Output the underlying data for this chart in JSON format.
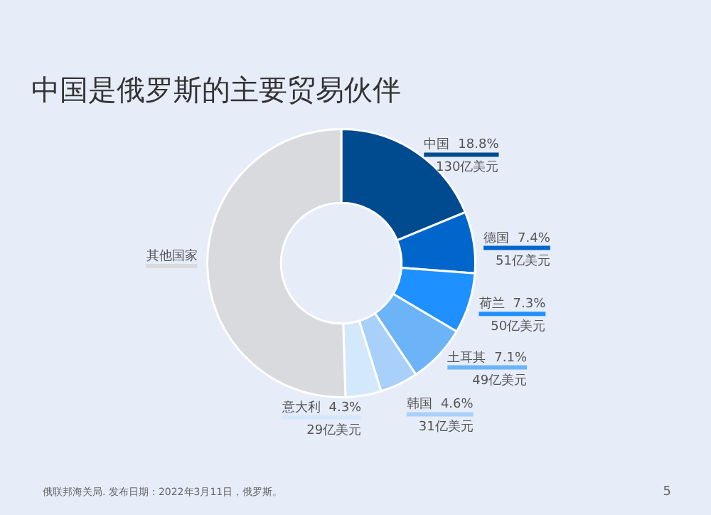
{
  "chart_data": {
    "type": "donut",
    "title": "中国是俄罗斯的主要贸易伙伴",
    "categories": [
      "中国",
      "德国",
      "荷兰",
      "土耳其",
      "韩国",
      "意大利",
      "其他国家"
    ],
    "values": [
      18.8,
      7.4,
      7.3,
      7.1,
      4.6,
      4.3,
      50.5
    ],
    "colors": [
      "#004a8f",
      "#0066cc",
      "#1e90ff",
      "#6cb4f7",
      "#a8d0fa",
      "#d4e8fc",
      "#d9dadd"
    ],
    "value_labels": [
      "18.8%\n130亿美元",
      "7.4%\n51亿美元",
      "7.3%\n50亿美元",
      "7.1%\n49亿美元",
      "4.6%\n31亿美元",
      "4.3%\n29亿美元",
      null
    ],
    "legend": false,
    "annotations": [
      "俄联邦海关局. 发布日期：2022年3月11日，俄罗斯。",
      "5"
    ]
  }
}
